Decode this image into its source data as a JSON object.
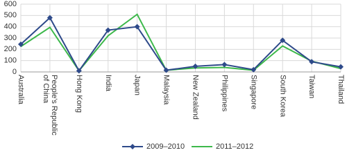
{
  "chart_data": {
    "type": "line",
    "categories": [
      "Australia",
      "People's Republic of China",
      "Hong Kong",
      "India",
      "Japan",
      "Malaysia",
      "New Zealand",
      "Philippines",
      "Singapore",
      "South Korea",
      "Taiwan",
      "Thailand"
    ],
    "series": [
      {
        "name": "2009–2010",
        "color": "#2e4a8a",
        "marker": "diamond",
        "values": [
          245,
          480,
          10,
          370,
          400,
          15,
          50,
          65,
          20,
          280,
          90,
          45
        ]
      },
      {
        "name": "2011–2012",
        "color": "#3cb84a",
        "values": [
          225,
          395,
          10,
          320,
          510,
          15,
          35,
          40,
          15,
          230,
          95,
          30
        ]
      }
    ],
    "ylim": [
      0,
      600
    ],
    "yticks": [
      0,
      100,
      200,
      300,
      400,
      500,
      600
    ],
    "grid": true,
    "legend": "bottom"
  }
}
